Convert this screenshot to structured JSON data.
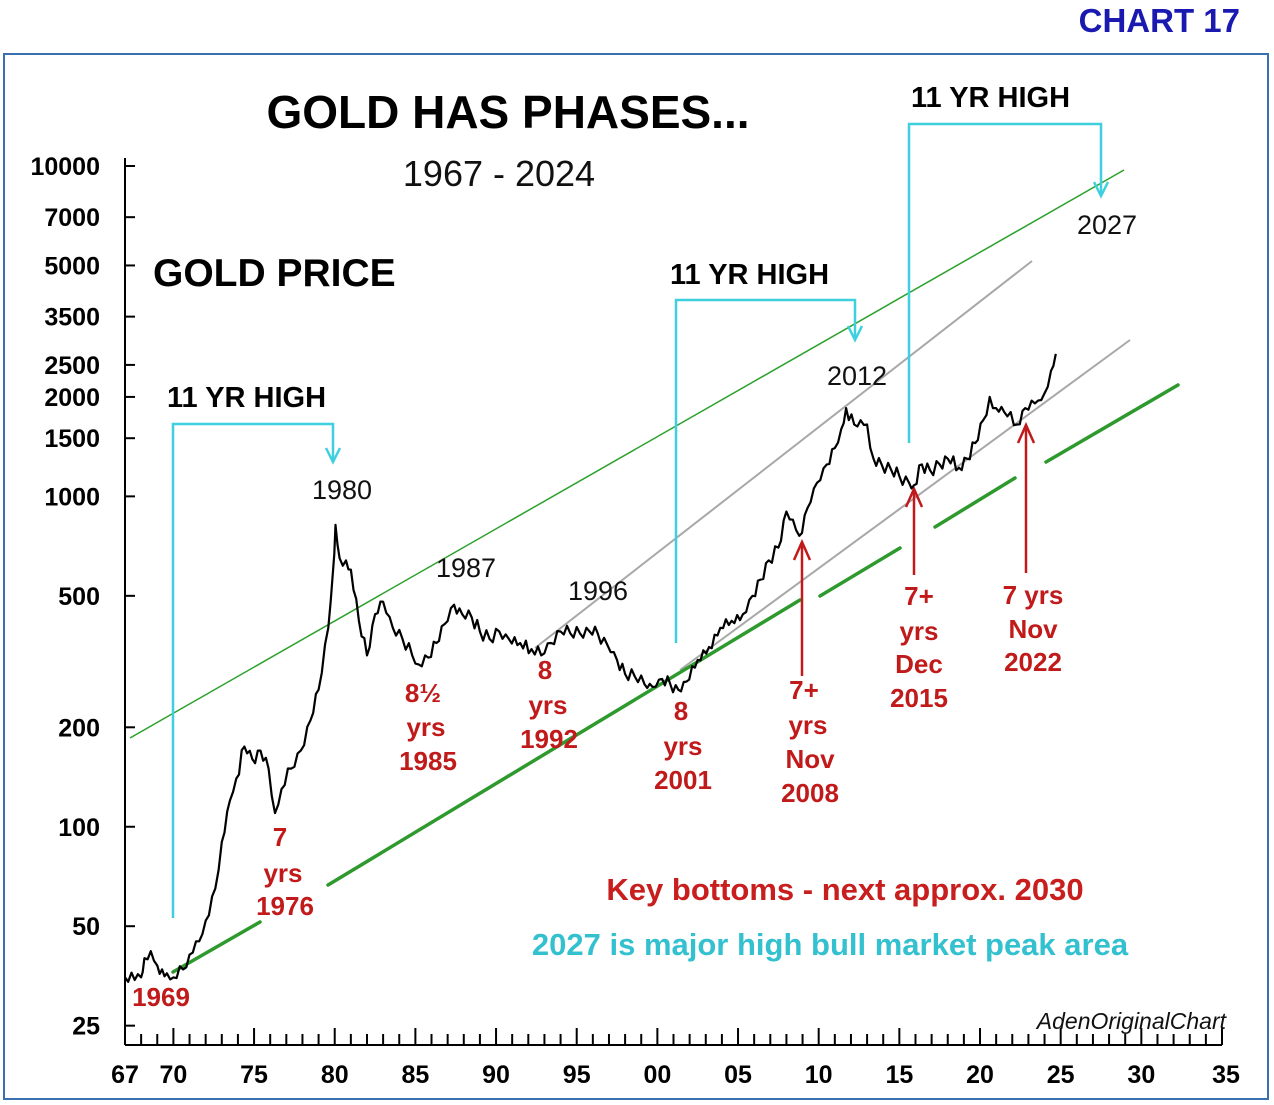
{
  "header": {
    "chart_label": "CHART 17"
  },
  "chart_data": {
    "type": "line",
    "title": "GOLD HAS PHASES...",
    "subtitle": "1967 - 2024",
    "series_label": "GOLD PRICE",
    "credit": "AdenOriginalChart",
    "yscale": "log",
    "ylim": [
      22,
      10000
    ],
    "xlim": [
      1967,
      2035
    ],
    "yticks": [
      {
        "value": 25,
        "label": "25"
      },
      {
        "value": 50,
        "label": "50"
      },
      {
        "value": 100,
        "label": "100"
      },
      {
        "value": 200,
        "label": "200"
      },
      {
        "value": 500,
        "label": "500"
      },
      {
        "value": 1000,
        "label": "1000"
      },
      {
        "value": 1500,
        "label": "1500"
      },
      {
        "value": 2000,
        "label": "2000"
      },
      {
        "value": 2500,
        "label": "2500"
      },
      {
        "value": 3500,
        "label": "3500"
      },
      {
        "value": 5000,
        "label": "5000"
      },
      {
        "value": 7000,
        "label": "7000"
      },
      {
        "value": 10000,
        "label": "10000"
      }
    ],
    "xticks": [
      {
        "value": 1967,
        "label": "67"
      },
      {
        "value": 1970,
        "label": "70"
      },
      {
        "value": 1975,
        "label": "75"
      },
      {
        "value": 1980,
        "label": "80"
      },
      {
        "value": 1985,
        "label": "85"
      },
      {
        "value": 1990,
        "label": "90"
      },
      {
        "value": 1995,
        "label": "95"
      },
      {
        "value": 2000,
        "label": "00"
      },
      {
        "value": 2005,
        "label": "05"
      },
      {
        "value": 2010,
        "label": "10"
      },
      {
        "value": 2015,
        "label": "15"
      },
      {
        "value": 2020,
        "label": "20"
      },
      {
        "value": 2025,
        "label": "25"
      },
      {
        "value": 2030,
        "label": "30"
      },
      {
        "value": 2035,
        "label": "35"
      }
    ],
    "series": [
      {
        "x": [
          1967.0,
          1968.0,
          1968.2,
          1968.6,
          1969.0,
          1969.3,
          1969.6,
          1970.0,
          1970.6,
          1971.0,
          1971.6,
          1972.0,
          1972.6,
          1973.0,
          1973.5,
          1973.9,
          1974.4,
          1974.9,
          1975.4,
          1975.9,
          1976.3,
          1976.7,
          1977.3,
          1977.9,
          1978.5,
          1979.0,
          1979.6,
          1979.9,
          1980.05,
          1980.3,
          1980.7,
          1981.0,
          1981.5,
          1982.0,
          1982.5,
          1983.0,
          1983.6,
          1984.2,
          1984.8,
          1985.2,
          1985.8,
          1986.3,
          1986.8,
          1987.4,
          1987.9,
          1988.5,
          1989.0,
          1989.6,
          1990.2,
          1990.8,
          1991.5,
          1992.2,
          1992.8,
          1993.4,
          1994.0,
          1994.6,
          1995.2,
          1995.8,
          1996.3,
          1996.9,
          1997.5,
          1998.0,
          1998.6,
          1999.2,
          1999.7,
          2000.3,
          2000.8,
          2001.3,
          2001.8,
          2002.5,
          2003.2,
          2003.9,
          2004.6,
          2005.3,
          2005.9,
          2006.4,
          2006.9,
          2007.5,
          2008.0,
          2008.4,
          2008.8,
          2009.3,
          2009.9,
          2010.5,
          2011.0,
          2011.4,
          2011.7,
          2012.2,
          2012.6,
          2013.0,
          2013.4,
          2013.9,
          2014.5,
          2015.0,
          2015.6,
          2015.9,
          2016.4,
          2016.9,
          2017.5,
          2018.0,
          2018.7,
          2019.2,
          2019.7,
          2020.2,
          2020.6,
          2021.0,
          2021.5,
          2021.9,
          2022.3,
          2022.8,
          2023.2,
          2023.6,
          2024.0,
          2024.4,
          2024.7
        ],
        "y": [
          35,
          35,
          40,
          42,
          38,
          37,
          36,
          35,
          37,
          41,
          45,
          52,
          65,
          90,
          120,
          140,
          175,
          160,
          170,
          150,
          110,
          130,
          150,
          170,
          210,
          260,
          400,
          600,
          820,
          650,
          640,
          600,
          420,
          330,
          440,
          480,
          400,
          370,
          330,
          310,
          325,
          360,
          410,
          470,
          440,
          430,
          390,
          370,
          390,
          370,
          360,
          345,
          330,
          360,
          390,
          385,
          385,
          390,
          385,
          355,
          320,
          290,
          285,
          270,
          265,
          280,
          270,
          260,
          275,
          320,
          350,
          400,
          420,
          440,
          500,
          560,
          640,
          700,
          900,
          850,
          760,
          920,
          1100,
          1250,
          1400,
          1600,
          1850,
          1650,
          1700,
          1650,
          1300,
          1250,
          1200,
          1150,
          1100,
          1080,
          1250,
          1200,
          1250,
          1300,
          1220,
          1300,
          1450,
          1700,
          2000,
          1850,
          1800,
          1800,
          1650,
          1850,
          1950,
          1950,
          2050,
          2400,
          2700
        ]
      }
    ],
    "annotations": {
      "high_labels": [
        "11 YR HIGH",
        "11 YR HIGH",
        "11 YR HIGH"
      ],
      "peak_years": [
        "1980",
        "1987",
        "1996",
        "2012",
        "2027"
      ],
      "bottoms": [
        {
          "lines": [
            "1969"
          ]
        },
        {
          "lines": [
            "7",
            "yrs",
            "1976"
          ]
        },
        {
          "lines": [
            "8½",
            "yrs",
            "1985"
          ]
        },
        {
          "lines": [
            "8",
            "yrs",
            "1992"
          ]
        },
        {
          "lines": [
            "8",
            "yrs",
            "2001"
          ]
        },
        {
          "lines": [
            "7+",
            "yrs",
            "Nov",
            "2008"
          ]
        },
        {
          "lines": [
            "7+",
            "yrs",
            "Dec",
            "2015"
          ]
        },
        {
          "lines": [
            "7 yrs",
            "Nov",
            "2022"
          ]
        }
      ],
      "key_bottoms_note": "Key bottoms - next approx. 2030",
      "peak_note": "2027 is major high bull market peak area"
    }
  }
}
